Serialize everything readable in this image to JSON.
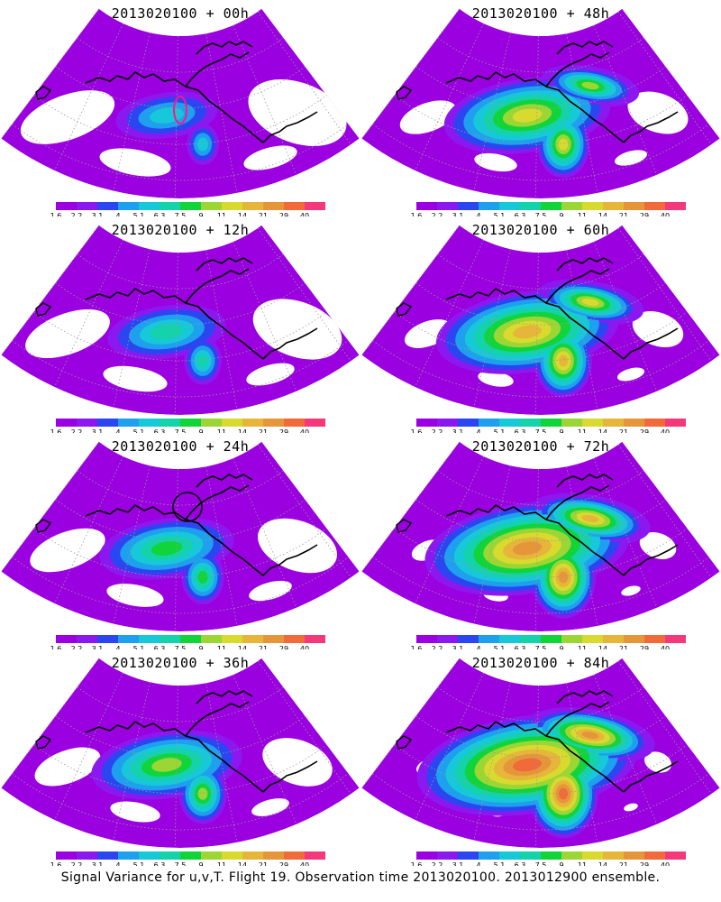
{
  "colors": {
    "scale": [
      "#9a00e0",
      "#8c18f0",
      "#2b46f0",
      "#1ea0ee",
      "#16c8d8",
      "#14d2aa",
      "#10d43a",
      "#9cd634",
      "#d8da30",
      "#e6b63a",
      "#e6963a",
      "#f06a3a",
      "#f4387a"
    ],
    "land_outline": "#000000",
    "grid": "#9a9a9a",
    "marker": "#ff1493"
  },
  "colorbar": {
    "labels": [
      "1.6",
      "2.2",
      "3.1",
      "4",
      "5.1",
      "6.3",
      "7.5",
      "9",
      "11",
      "14",
      "21",
      "29",
      "40"
    ]
  },
  "panels": [
    {
      "id": "p00",
      "title": "2013020100 + 00h",
      "level": 0.15
    },
    {
      "id": "p48",
      "title": "2013020100 + 48h",
      "level": 0.55
    },
    {
      "id": "p12",
      "title": "2013020100 + 12h",
      "level": 0.25
    },
    {
      "id": "p60",
      "title": "2013020100 + 60h",
      "level": 0.65
    },
    {
      "id": "p24",
      "title": "2013020100 + 24h",
      "level": 0.35
    },
    {
      "id": "p72",
      "title": "2013020100 + 72h",
      "level": 0.8
    },
    {
      "id": "p36",
      "title": "2013020100 + 36h",
      "level": 0.45
    },
    {
      "id": "p84",
      "title": "2013020100 + 84h",
      "level": 0.9
    }
  ],
  "caption": "Signal Variance for u,v,T. Flight 19. Observation time 2013020100. 2013012900 ensemble."
}
